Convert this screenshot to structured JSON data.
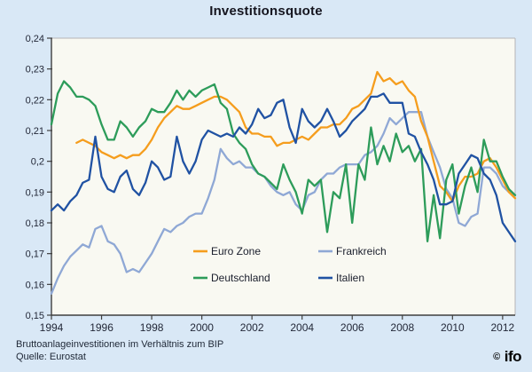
{
  "title": "Investitionsquote",
  "footer": {
    "line1": "Bruttoanlageinvestitionen im Verhältnis zum BIP",
    "line2": "Quelle: Eurostat"
  },
  "logo": {
    "copyright": "©",
    "text": "ifo"
  },
  "colors": {
    "background": "#d9e8f6",
    "plot_background": "#f9f9f2",
    "axis": "#3f3f3f",
    "frame_light": "#b5b5b5",
    "tick_label": "#232838",
    "legend_text": "#1a1e2c"
  },
  "chart_data": {
    "type": "line",
    "title": "Investitionsquote",
    "xlabel": "",
    "ylabel": "",
    "x_start": 1994.0,
    "x_step": 0.25,
    "x_scale_max": 2012.5,
    "ylim": [
      0.15,
      0.24
    ],
    "grid": false,
    "legend_position": "inside-bottom-center-two-columns",
    "y_ticks": [
      0.24,
      0.23,
      0.22,
      0.21,
      0.2,
      0.19,
      0.18,
      0.17,
      0.16,
      0.15
    ],
    "y_tick_labels": [
      "0,24",
      "0,23",
      "0,22",
      "0,21",
      "0,2",
      "0,19",
      "0,18",
      "0,17",
      "0,16",
      "0,15"
    ],
    "x_ticks": [
      1994,
      1996,
      1998,
      2000,
      2002,
      2004,
      2006,
      2008,
      2010,
      2012
    ],
    "x_tick_labels": [
      "1994",
      "1996",
      "1998",
      "2000",
      "2002",
      "2004",
      "2006",
      "2008",
      "2010",
      "2012"
    ],
    "series": [
      {
        "name": "Euro Zone",
        "color": "#f59d1d",
        "values": [
          null,
          null,
          null,
          null,
          0.206,
          0.207,
          0.206,
          0.205,
          0.203,
          0.202,
          0.201,
          0.202,
          0.201,
          0.202,
          0.202,
          0.204,
          0.207,
          0.211,
          0.214,
          0.216,
          0.218,
          0.217,
          0.217,
          0.218,
          0.219,
          0.22,
          0.221,
          0.221,
          0.22,
          0.218,
          0.216,
          0.211,
          0.209,
          0.209,
          0.208,
          0.208,
          0.205,
          0.206,
          0.206,
          0.207,
          0.208,
          0.207,
          0.209,
          0.211,
          0.211,
          0.212,
          0.212,
          0.214,
          0.217,
          0.218,
          0.22,
          0.222,
          0.229,
          0.226,
          0.227,
          0.225,
          0.226,
          0.223,
          0.221,
          0.213,
          0.208,
          0.2,
          0.192,
          0.19,
          0.187,
          0.192,
          0.195,
          0.195,
          0.196,
          0.2,
          0.201,
          0.198,
          0.194,
          0.19,
          0.188
        ]
      },
      {
        "name": "Deutschland",
        "color": "#2d9c5a",
        "values": [
          0.212,
          0.222,
          0.226,
          0.224,
          0.221,
          0.221,
          0.22,
          0.218,
          0.212,
          0.207,
          0.207,
          0.213,
          0.211,
          0.208,
          0.211,
          0.213,
          0.217,
          0.216,
          0.216,
          0.219,
          0.223,
          0.22,
          0.223,
          0.221,
          0.223,
          0.224,
          0.225,
          0.219,
          0.217,
          0.209,
          0.206,
          0.204,
          0.199,
          0.196,
          0.195,
          0.193,
          0.191,
          0.199,
          0.194,
          0.19,
          0.183,
          0.194,
          0.192,
          0.194,
          0.177,
          0.19,
          0.188,
          0.199,
          0.18,
          0.199,
          0.194,
          0.211,
          0.199,
          0.205,
          0.2,
          0.209,
          0.203,
          0.205,
          0.2,
          0.204,
          0.174,
          0.189,
          0.175,
          0.194,
          0.199,
          0.183,
          0.192,
          0.198,
          0.19,
          0.207,
          0.2,
          0.2,
          0.195,
          0.191,
          0.189
        ]
      },
      {
        "name": "Frankreich",
        "color": "#8fa8d5",
        "values": [
          0.157,
          0.162,
          0.166,
          0.169,
          0.171,
          0.173,
          0.172,
          0.178,
          0.179,
          0.174,
          0.173,
          0.17,
          0.164,
          0.165,
          0.164,
          0.167,
          0.17,
          0.174,
          0.178,
          0.177,
          0.179,
          0.18,
          0.182,
          0.183,
          0.183,
          0.188,
          0.194,
          0.204,
          0.201,
          0.199,
          0.2,
          0.198,
          0.198,
          0.196,
          0.195,
          0.192,
          0.19,
          0.189,
          0.19,
          0.186,
          0.184,
          0.189,
          0.19,
          0.194,
          0.196,
          0.196,
          0.198,
          0.199,
          0.199,
          0.199,
          0.202,
          0.203,
          0.205,
          0.209,
          0.214,
          0.212,
          0.214,
          0.216,
          0.216,
          0.216,
          0.208,
          0.203,
          0.198,
          0.191,
          0.188,
          0.18,
          0.179,
          0.182,
          0.183,
          0.198,
          0.198,
          0.196,
          0.192,
          0.19,
          0.189
        ]
      },
      {
        "name": "Italien",
        "color": "#2052a3",
        "values": [
          0.184,
          0.186,
          0.184,
          0.187,
          0.189,
          0.193,
          0.194,
          0.208,
          0.195,
          0.191,
          0.19,
          0.195,
          0.197,
          0.191,
          0.189,
          0.193,
          0.2,
          0.198,
          0.194,
          0.195,
          0.208,
          0.2,
          0.196,
          0.2,
          0.207,
          0.21,
          0.209,
          0.208,
          0.209,
          0.208,
          0.211,
          0.209,
          0.212,
          0.217,
          0.214,
          0.215,
          0.219,
          0.22,
          0.211,
          0.206,
          0.217,
          0.213,
          0.211,
          0.213,
          0.217,
          0.213,
          0.208,
          0.21,
          0.213,
          0.215,
          0.217,
          0.221,
          0.221,
          0.222,
          0.219,
          0.219,
          0.219,
          0.209,
          0.208,
          0.203,
          0.199,
          0.194,
          0.186,
          0.186,
          0.187,
          0.196,
          0.199,
          0.202,
          0.201,
          0.196,
          0.194,
          0.189,
          0.18,
          0.177,
          0.174
        ]
      }
    ],
    "legend_order_columns": [
      [
        "Euro Zone",
        "Deutschland"
      ],
      [
        "Frankreich",
        "Italien"
      ]
    ]
  }
}
